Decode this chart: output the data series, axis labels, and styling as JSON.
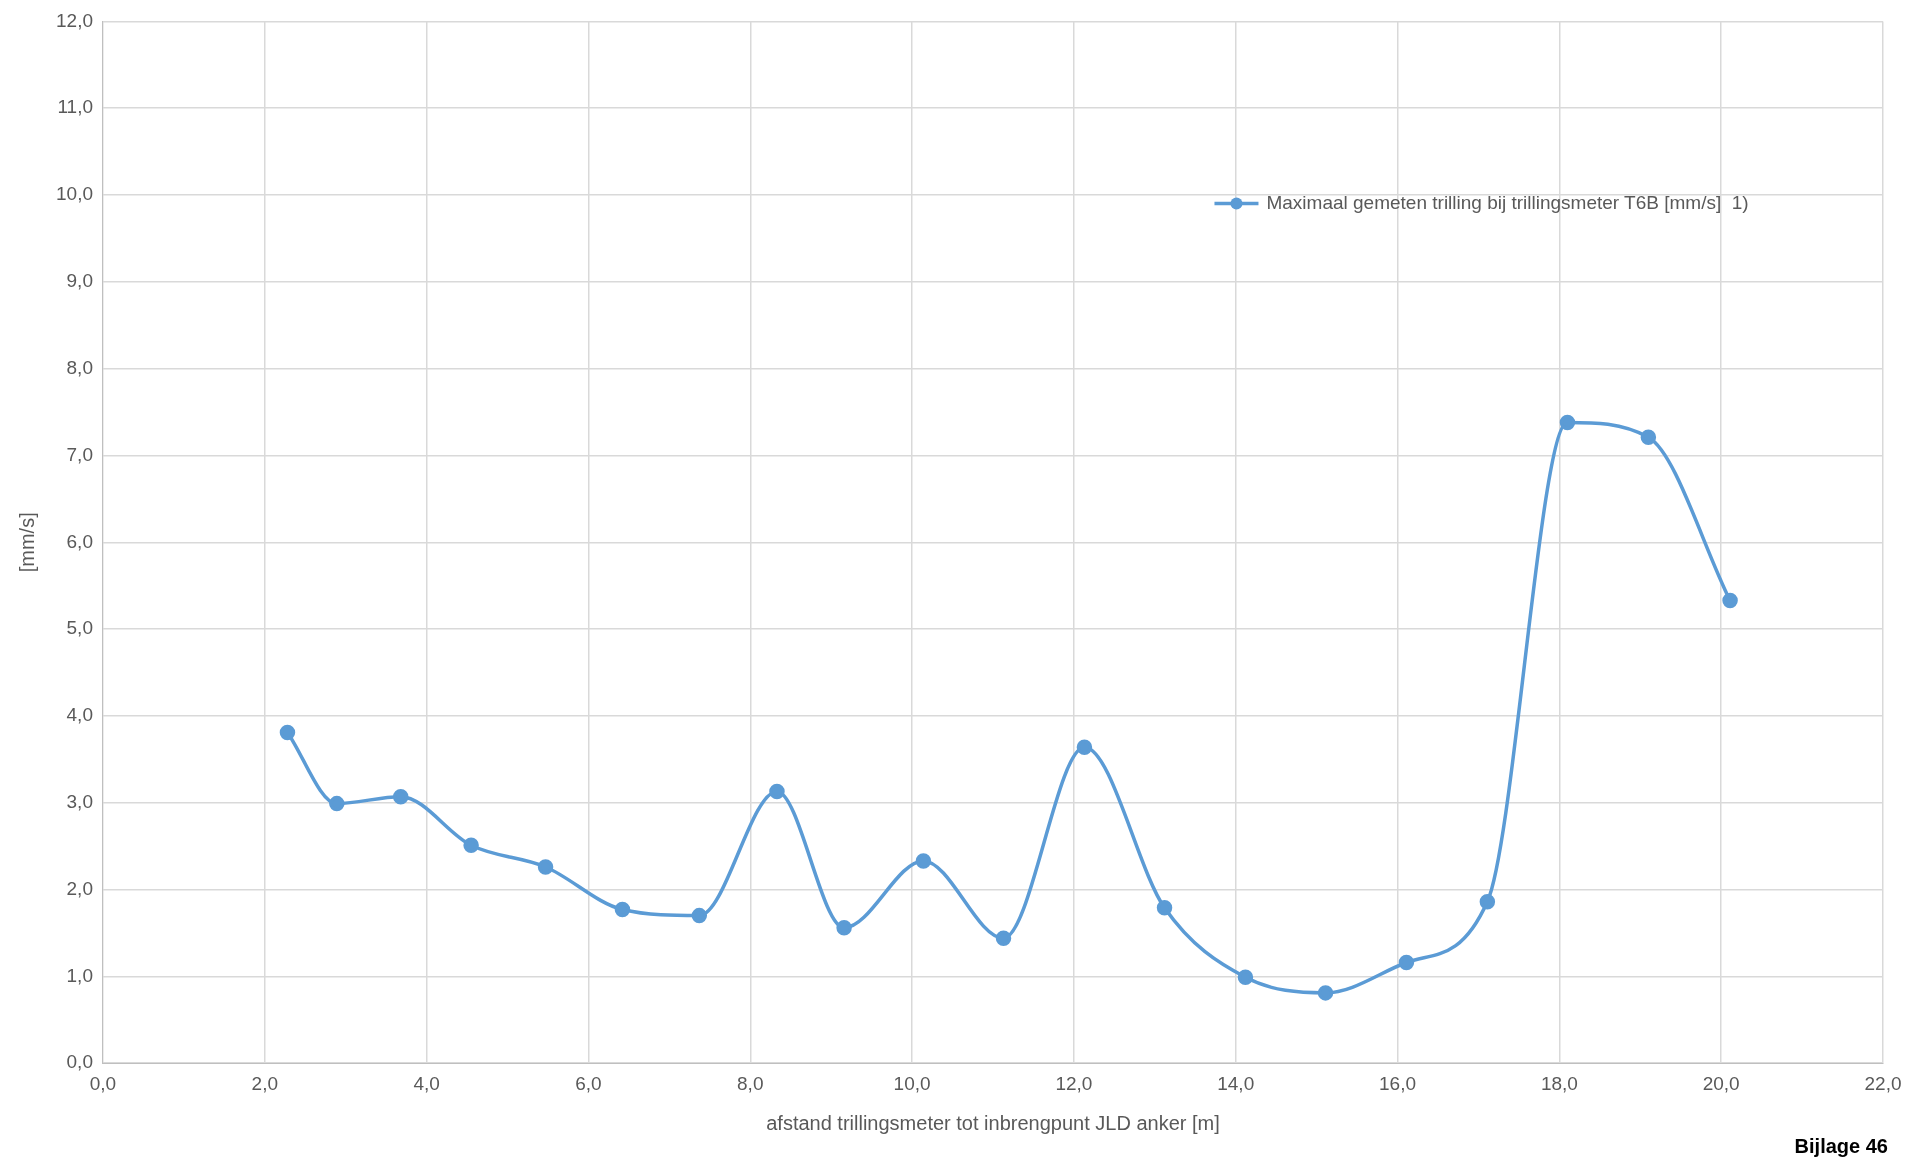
{
  "chart_data": {
    "type": "line",
    "xlabel": "afstand trillingsmeter tot inbrengpunt JLD anker [m]",
    "ylabel": "[mm/s]",
    "series": [
      {
        "name": "Maximaal gemeten trilling bij trillingsmeter T6B [mm/s]  1)",
        "color": "#5b9bd5",
        "x": [
          2.28,
          2.89,
          3.68,
          4.55,
          5.47,
          6.42,
          7.37,
          8.33,
          9.16,
          10.14,
          11.13,
          12.13,
          13.12,
          14.12,
          15.11,
          16.11,
          17.11,
          18.1,
          19.1,
          20.11
        ],
        "values": [
          3.81,
          2.99,
          3.07,
          2.51,
          2.26,
          1.77,
          1.7,
          3.13,
          1.56,
          2.33,
          1.44,
          3.64,
          1.79,
          0.99,
          0.81,
          1.16,
          1.86,
          7.38,
          7.21,
          5.33
        ]
      }
    ],
    "xlim": [
      0,
      22
    ],
    "ylim": [
      0,
      12
    ],
    "xticks": [
      {
        "value": 0,
        "label": "0,0"
      },
      {
        "value": 2,
        "label": "2,0"
      },
      {
        "value": 4,
        "label": "4,0"
      },
      {
        "value": 6,
        "label": "6,0"
      },
      {
        "value": 8,
        "label": "8,0"
      },
      {
        "value": 10,
        "label": "10,0"
      },
      {
        "value": 12,
        "label": "12,0"
      },
      {
        "value": 14,
        "label": "14,0"
      },
      {
        "value": 16,
        "label": "16,0"
      },
      {
        "value": 18,
        "label": "18,0"
      },
      {
        "value": 20,
        "label": "20,0"
      },
      {
        "value": 22,
        "label": "22,0"
      }
    ],
    "yticks": [
      {
        "value": 0,
        "label": "0,0"
      },
      {
        "value": 1,
        "label": "1,0"
      },
      {
        "value": 2,
        "label": "2,0"
      },
      {
        "value": 3,
        "label": "3,0"
      },
      {
        "value": 4,
        "label": "4,0"
      },
      {
        "value": 5,
        "label": "5,0"
      },
      {
        "value": 6,
        "label": "6,0"
      },
      {
        "value": 7,
        "label": "7,0"
      },
      {
        "value": 8,
        "label": "8,0"
      },
      {
        "value": 9,
        "label": "9,0"
      },
      {
        "value": 10,
        "label": "10,0"
      },
      {
        "value": 11,
        "label": "11,0"
      },
      {
        "value": 12,
        "label": "12,0"
      }
    ],
    "grid": true,
    "legend": "top right",
    "marker": "circle",
    "line_style": "solid",
    "annotations": [
      "Bijlage 46"
    ]
  }
}
